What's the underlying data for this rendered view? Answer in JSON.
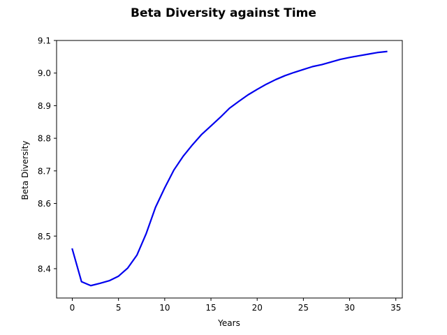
{
  "chart_data": {
    "type": "line",
    "title": "Beta Diversity against Time",
    "xlabel": "Years",
    "ylabel": "Beta Diversity",
    "xlim": [
      -1.7,
      35.7
    ],
    "ylim": [
      8.31,
      9.1
    ],
    "xticks": [
      0,
      5,
      10,
      15,
      20,
      25,
      30,
      35
    ],
    "yticks": [
      8.4,
      8.5,
      8.6,
      8.7,
      8.8,
      8.9,
      9.0,
      9.1
    ],
    "xtick_labels": [
      "0",
      "5",
      "10",
      "15",
      "20",
      "25",
      "30",
      "35"
    ],
    "ytick_labels": [
      "8.4",
      "8.5",
      "8.6",
      "8.7",
      "8.8",
      "8.9",
      "9.0",
      "9.1"
    ],
    "grid": false,
    "series": [
      {
        "color": "#0000ee",
        "x": [
          0,
          1,
          2,
          3,
          4,
          5,
          6,
          7,
          8,
          9,
          10,
          11,
          12,
          13,
          14,
          15,
          16,
          17,
          18,
          19,
          20,
          21,
          22,
          23,
          24,
          25,
          26,
          27,
          28,
          29,
          30,
          31,
          32,
          33,
          34
        ],
        "y": [
          8.46,
          8.36,
          8.348,
          8.355,
          8.363,
          8.377,
          8.402,
          8.442,
          8.508,
          8.588,
          8.648,
          8.703,
          8.745,
          8.78,
          8.812,
          8.838,
          8.864,
          8.892,
          8.913,
          8.933,
          8.95,
          8.966,
          8.98,
          8.992,
          9.002,
          9.011,
          9.02,
          9.026,
          9.034,
          9.042,
          9.048,
          9.053,
          9.058,
          9.063,
          9.066
        ]
      }
    ]
  }
}
